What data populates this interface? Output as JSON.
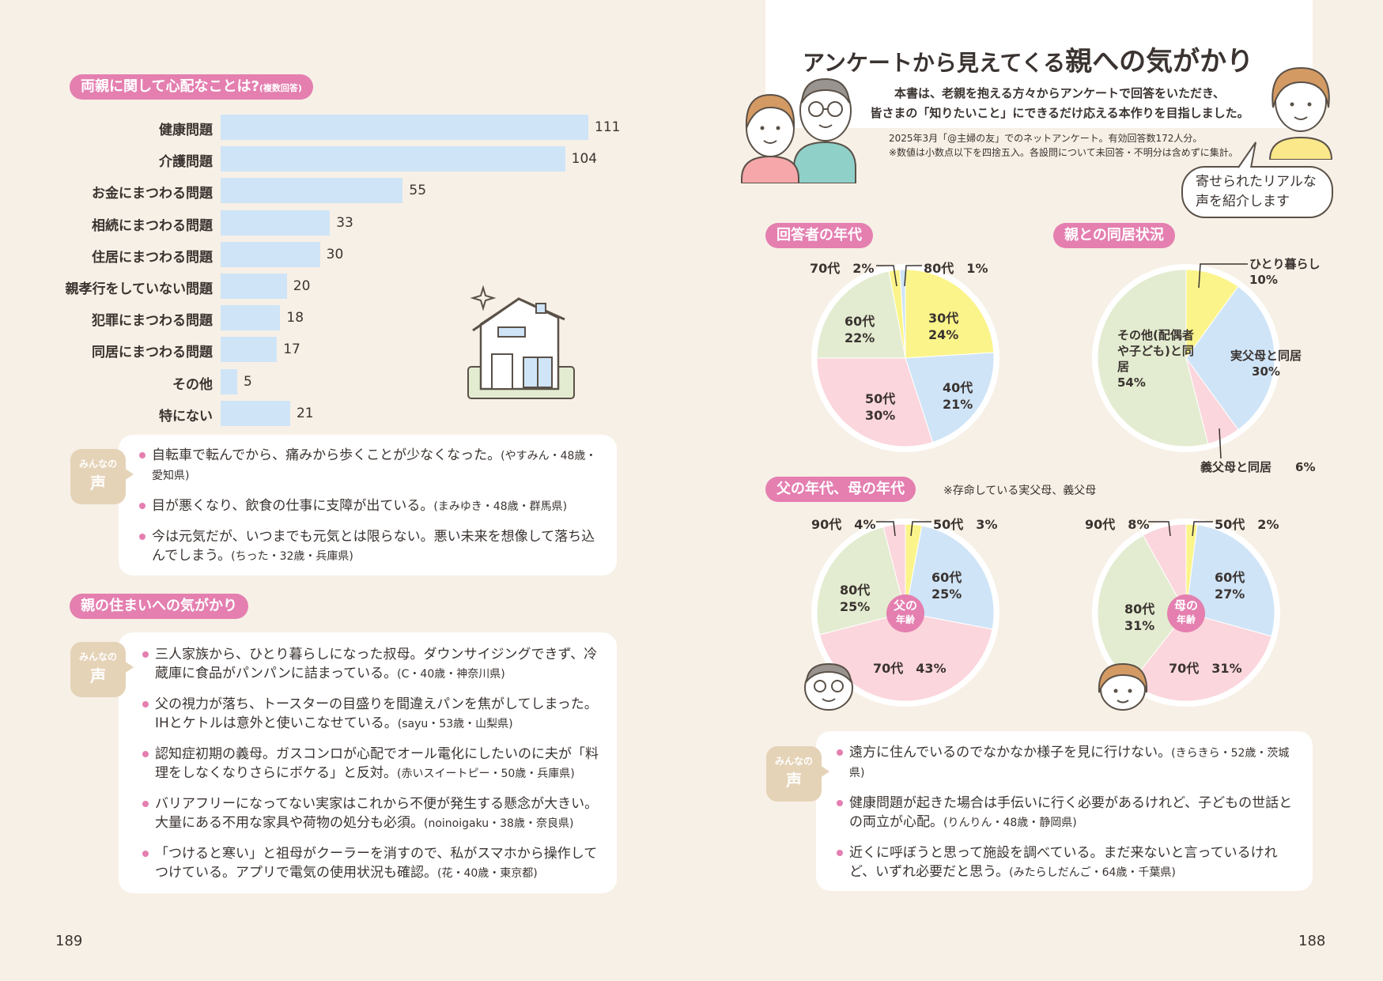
{
  "left": {
    "concern_title": "両親に関して心配なことは?",
    "concern_title_note": "(複数回答)",
    "voice_label_top": "みんなの",
    "voice_label_bottom": "声",
    "voices1": [
      {
        "text": "自転車で転んでから、痛みから歩くことが少なくなった。",
        "src": "(やすみん・48歳・愛知県)"
      },
      {
        "text": "目が悪くなり、飲食の仕事に支障が出ている。",
        "src": "(まみゆき・48歳・群馬県)"
      },
      {
        "text": "今は元気だが、いつまでも元気とは限らない。悪い未来を想像して落ち込んでしまう。",
        "src": "(ちった・32歳・兵庫県)"
      }
    ],
    "housing_title": "親の住まいへの気がかり",
    "voices2": [
      {
        "text": "三人家族から、ひとり暮らしになった叔母。ダウンサイジングできず、冷蔵庫に食品がパンパンに詰まっている。",
        "src": "(C・40歳・神奈川県)"
      },
      {
        "text": "父の視力が落ち、トースターの目盛りを間違えパンを焦がしてしまった。IHとケトルは意外と使いこなせている。",
        "src": "(sayu・53歳・山梨県)"
      },
      {
        "text": "認知症初期の義母。ガスコンロが心配でオール電化にしたいのに夫が「料理をしなくなりさらにボケる」と反対。",
        "src": "(赤いスイートピー・50歳・兵庫県)"
      },
      {
        "text": "バリアフリーになってない実家はこれから不便が発生する懸念が大きい。大量にある不用な家具や荷物の処分も必須。",
        "src": "(noinoigaku・38歳・奈良県)"
      },
      {
        "text": "「つけると寒い」と祖母がクーラーを消すので、私がスマホから操作してつけている。アプリで電気の使用状況も確認。",
        "src": "(花・40歳・東京都)"
      }
    ],
    "page_number": "189"
  },
  "right": {
    "heading_prefix": "アンケートから見えてくる",
    "heading_main": "親への気がかり",
    "intro_line1": "本書は、老親を抱える方々からアンケートで回答をいただき、",
    "intro_line2": "皆さまの「知りたいこと」にできるだけ応える本作りを目指しました。",
    "note_line1": "2025年3月「@主婦の友」でのネットアンケート。有効回答数172人分。",
    "note_line2": "※数値は小数点以下を四捨五入。各設問について未回答・不明分は含めずに集計。",
    "bubble_line1": "寄せられたリアルな",
    "bubble_line2": "声を紹介します",
    "age_title": "回答者の年代",
    "living_title": "親との同居状況",
    "parents_title": "父の年代、母の年代",
    "parents_note": "※存命している実父母、義父母",
    "father_center_1": "父の",
    "father_center_2": "年齢",
    "mother_center_1": "母の",
    "mother_center_2": "年齢",
    "voices3": [
      {
        "text": "遠方に住んでいるのでなかなか様子を見に行けない。",
        "src": "(きらきら・52歳・茨城県)"
      },
      {
        "text": "健康問題が起きた場合は手伝いに行く必要があるけれど、子どもの世話との両立が心配。",
        "src": "(りんりん・48歳・静岡県)"
      },
      {
        "text": "近くに呼ぼうと思って施設を調べている。まだ来ないと言っているけれど、いずれ必要だと思う。",
        "src": "(みたらしだんご・64歳・千葉県)"
      }
    ],
    "page_number": "188"
  },
  "colors": {
    "yellow": "#fbf48a",
    "blue": "#cfe4f7",
    "pink": "#fbd6dc",
    "green": "#e3ecd0",
    "accent": "#e47fb0",
    "bar": "#cfe4f7"
  },
  "chart_data": [
    {
      "type": "bar",
      "orientation": "horizontal",
      "title": "両親に関して心配なことは?(複数回答)",
      "categories": [
        "健康問題",
        "介護問題",
        "お金にまつわる問題",
        "相続にまつわる問題",
        "住居にまつわる問題",
        "親孝行をしていない問題",
        "犯罪にまつわる問題",
        "同居にまつわる問題",
        "その他",
        "特にない"
      ],
      "values": [
        111,
        104,
        55,
        33,
        30,
        20,
        18,
        17,
        5,
        21
      ]
    },
    {
      "type": "pie",
      "title": "回答者の年代",
      "slices": [
        {
          "label": "30代",
          "value": 24,
          "color": "yellow"
        },
        {
          "label": "40代",
          "value": 21,
          "color": "blue"
        },
        {
          "label": "50代",
          "value": 30,
          "color": "pink"
        },
        {
          "label": "60代",
          "value": 22,
          "color": "green"
        },
        {
          "label": "70代",
          "value": 2,
          "color": "yellow"
        },
        {
          "label": "80代",
          "value": 1,
          "color": "blue"
        }
      ]
    },
    {
      "type": "pie",
      "title": "親との同居状況",
      "slices": [
        {
          "label": "ひとり暮らし",
          "value": 10,
          "color": "yellow"
        },
        {
          "label": "実父母と同居",
          "value": 30,
          "color": "blue"
        },
        {
          "label": "義父母と同居",
          "value": 6,
          "color": "pink"
        },
        {
          "label": "その他(配偶者や子ども)と同居",
          "value": 54,
          "color": "green"
        }
      ]
    },
    {
      "type": "pie",
      "title": "父の年齢",
      "slices": [
        {
          "label": "50代",
          "value": 3,
          "color": "yellow"
        },
        {
          "label": "60代",
          "value": 25,
          "color": "blue"
        },
        {
          "label": "70代",
          "value": 43,
          "color": "pink"
        },
        {
          "label": "80代",
          "value": 25,
          "color": "green"
        },
        {
          "label": "90代",
          "value": 4,
          "color": "pink"
        }
      ]
    },
    {
      "type": "pie",
      "title": "母の年齢",
      "slices": [
        {
          "label": "50代",
          "value": 2,
          "color": "yellow"
        },
        {
          "label": "60代",
          "value": 27,
          "color": "blue"
        },
        {
          "label": "70代",
          "value": 31,
          "color": "pink"
        },
        {
          "label": "80代",
          "value": 31,
          "color": "green"
        },
        {
          "label": "90代",
          "value": 8,
          "color": "pink"
        }
      ]
    }
  ]
}
